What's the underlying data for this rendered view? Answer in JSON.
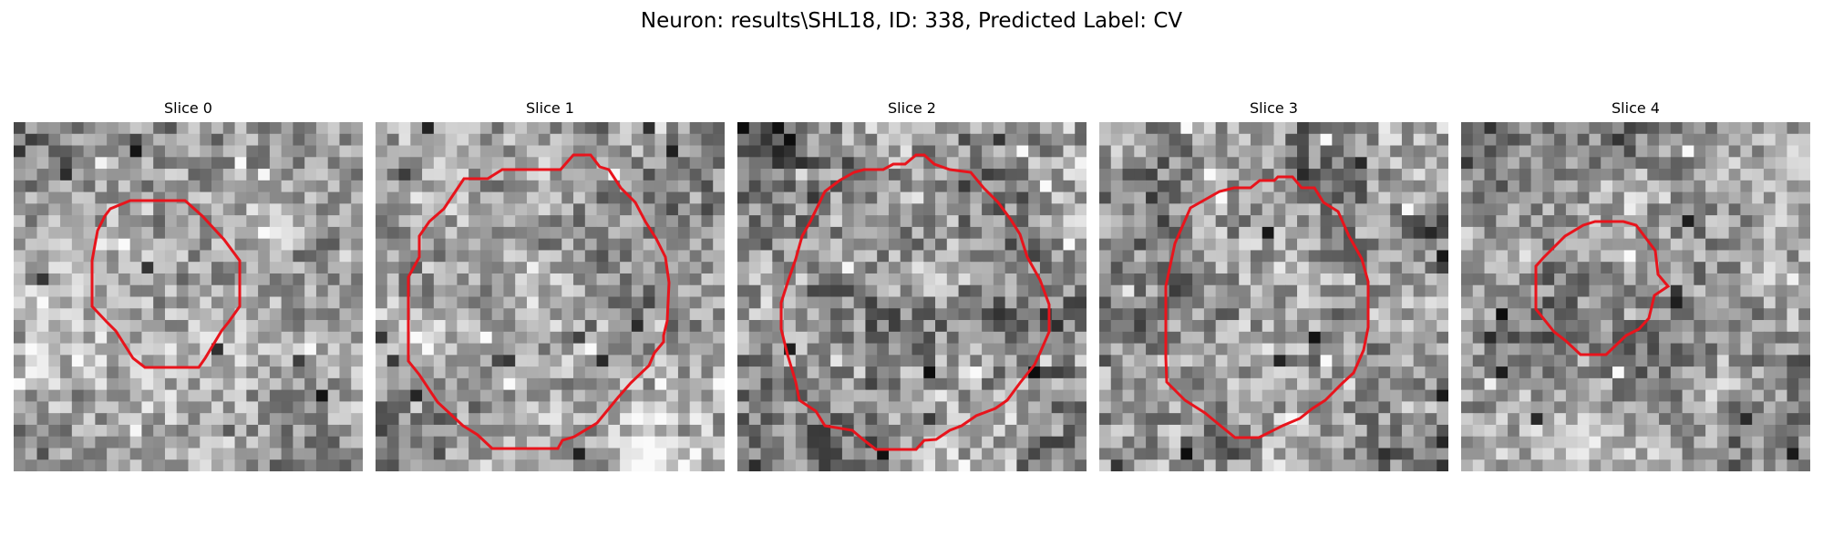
{
  "figure": {
    "title": "Neuron: results\\SHL18, ID: 338, Predicted Label: CV",
    "panels": [
      {
        "title": "Slice 0",
        "seed": 11,
        "mean": 0.62,
        "contrast": 0.22,
        "outline_color": "#e8141c"
      },
      {
        "title": "Slice 1",
        "seed": 23,
        "mean": 0.64,
        "contrast": 0.22,
        "outline_color": "#e8141c"
      },
      {
        "title": "Slice 2",
        "seed": 37,
        "mean": 0.55,
        "contrast": 0.27,
        "outline_color": "#e8141c"
      },
      {
        "title": "Slice 3",
        "seed": 41,
        "mean": 0.58,
        "contrast": 0.25,
        "outline_color": "#e8141c"
      },
      {
        "title": "Slice 4",
        "seed": 53,
        "mean": 0.6,
        "contrast": 0.23,
        "outline_color": "#e8141c"
      }
    ]
  }
}
